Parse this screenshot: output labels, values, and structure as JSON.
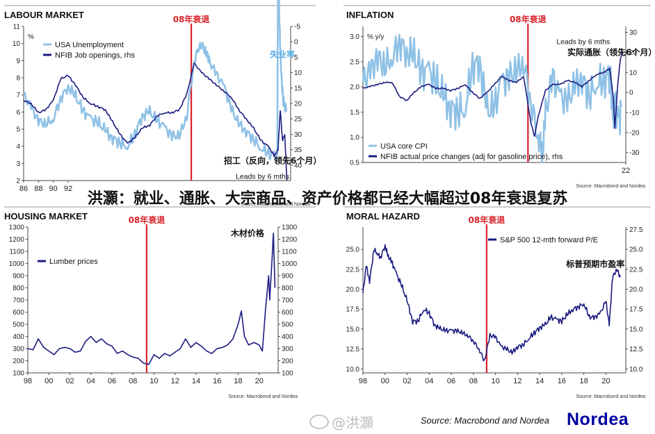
{
  "overlay_title": "洪灝：就业、通胀、大宗商品、资产价格都已经大幅超过08年衰退复苏",
  "footer": {
    "source": "Source: Macrobond and Nordea",
    "logo": "Nordea",
    "watermark": "@洪灝"
  },
  "colors": {
    "dark_series": "#1a1a80",
    "light_series": "#8fc1e6",
    "recession_line": "#d8232a",
    "recession_label": "#d8232a",
    "light_annot": "#5aaee6"
  },
  "chart_data": [
    {
      "type": "line",
      "title": "LABOUR MARKET",
      "ylabel": "%",
      "recession_label": "08年衰退",
      "recession_x": 2008.6,
      "xlim": [
        1986,
        2022
      ],
      "x_ticks": [
        [
          1986,
          "86"
        ],
        [
          1988,
          "88"
        ],
        [
          1990,
          "90"
        ],
        [
          1992,
          "92"
        ]
      ],
      "ylim_left": [
        2,
        11
      ],
      "y_ticks_left": [
        2,
        3,
        4,
        5,
        6,
        7,
        8,
        9,
        10,
        11
      ],
      "ylim_right": [
        -5,
        45
      ],
      "right_inverted": true,
      "y_ticks_right": [
        -5,
        0,
        5,
        10,
        15,
        20,
        25,
        30,
        35,
        40
      ],
      "legend": "top-left",
      "annotations": [
        {
          "text": "失业率",
          "x": 2019.2,
          "y": 9.2,
          "axis": "left",
          "color": "light"
        },
        {
          "text": "招工（反向，领先6个月）",
          "x": 2013.0,
          "y": 3.0,
          "axis": "left",
          "color": "dark"
        },
        {
          "text": "Leads by 6 mths",
          "x": 2014.6,
          "y": 2.1,
          "axis": "left",
          "color": "dark"
        }
      ],
      "series": [
        {
          "name": "USA Unemployment",
          "axis": "left",
          "color": "light",
          "x": [
            1986,
            1987,
            1988,
            1989,
            1990,
            1991,
            1992,
            1993,
            1994,
            1995,
            1996,
            1997,
            1998,
            1999,
            2000,
            2001,
            2002,
            2003,
            2004,
            2005,
            2006,
            2007,
            2008,
            2009,
            2009.8,
            2010.5,
            2011,
            2012,
            2013,
            2014,
            2015,
            2016,
            2017,
            2018,
            2019,
            2020.2,
            2020.3,
            2020.5,
            2020.7,
            2021,
            2021.4
          ],
          "values": [
            7.0,
            6.3,
            5.5,
            5.3,
            5.6,
            6.8,
            7.5,
            6.9,
            6.1,
            5.6,
            5.4,
            4.9,
            4.5,
            4.2,
            4.0,
            4.7,
            5.8,
            6.0,
            5.5,
            5.1,
            4.6,
            4.6,
            5.8,
            9.0,
            10.0,
            9.6,
            9.0,
            8.2,
            7.5,
            6.2,
            5.3,
            4.9,
            4.4,
            3.9,
            3.6,
            3.5,
            14.7,
            11.1,
            8.4,
            6.7,
            6.0
          ]
        },
        {
          "name": "NFIB Job openings, rhs",
          "axis": "right",
          "color": "dark",
          "x": [
            1986,
            1987,
            1988,
            1989,
            1990,
            1991,
            1992,
            1993,
            1994,
            1995,
            1996,
            1997,
            1998,
            1999,
            2000,
            2001,
            2002,
            2003,
            2004,
            2005,
            2006,
            2007,
            2008,
            2009,
            2010,
            2011,
            2012,
            2013,
            2014,
            2015,
            2016,
            2017,
            2018,
            2019,
            2019.8,
            2020.3,
            2020.6,
            2020.9,
            2021.2,
            2021.5
          ],
          "values": [
            19,
            20,
            23,
            22,
            19,
            12,
            11,
            14,
            18,
            20,
            21,
            22,
            26,
            30,
            33,
            31,
            28,
            27,
            24,
            23,
            23,
            22,
            17,
            7,
            10,
            12,
            14,
            16,
            18,
            22,
            25,
            28,
            32,
            34,
            37,
            35,
            22,
            32,
            30,
            45
          ]
        }
      ]
    },
    {
      "type": "line",
      "title": "INFLATION",
      "ylabel": "% y/y",
      "recession_label": "08年衰退",
      "recession_x": 2008.6,
      "xlim": [
        1986,
        2022
      ],
      "x_ticks": [
        [
          2022,
          "22"
        ]
      ],
      "ylim_left": [
        0.5,
        3.2
      ],
      "y_ticks_left": [
        0.5,
        1.0,
        1.5,
        2.0,
        2.5,
        3.0
      ],
      "ylim_right": [
        -35,
        33
      ],
      "right_inverted": false,
      "y_ticks_right": [
        -30,
        -20,
        -10,
        0,
        10,
        20,
        30
      ],
      "legend": "bottom-left",
      "annotations": [
        {
          "text": "Leads by 6 mths",
          "x": 2012.5,
          "y": 2.85,
          "axis": "left",
          "color": "dark"
        },
        {
          "text": "实际通胀（领先6个月）",
          "x": 2014.0,
          "y": 2.63,
          "axis": "left",
          "color": "dark"
        }
      ],
      "series": [
        {
          "name": "USA core CPI",
          "axis": "left",
          "color": "light",
          "x": [
            1986,
            1987,
            1988,
            1989,
            1990,
            1991,
            1992,
            1993,
            1994,
            1995,
            1996,
            1997,
            1998,
            1999,
            2000,
            2001,
            2002,
            2003,
            2004,
            2005,
            2006,
            2007,
            2008,
            2009,
            2010,
            2010.6,
            2011,
            2012,
            2013,
            2014,
            2015,
            2016,
            2017,
            2018,
            2019,
            2019.9,
            2020.3,
            2020.6,
            2021,
            2021.4
          ],
          "values": [
            2.1,
            2.3,
            2.6,
            2.4,
            2.6,
            2.9,
            2.7,
            2.6,
            2.3,
            2.3,
            2.1,
            1.8,
            1.6,
            1.5,
            1.6,
            2.4,
            2.5,
            1.5,
            1.6,
            2.1,
            2.2,
            2.3,
            2.5,
            1.7,
            1.0,
            0.7,
            1.5,
            2.2,
            1.8,
            1.7,
            2.0,
            2.2,
            1.8,
            2.1,
            2.1,
            2.3,
            1.2,
            1.6,
            1.3,
            1.6
          ]
        },
        {
          "name": "NFIB actual price changes (adj for gasoline price), rhs",
          "axis": "right",
          "color": "dark",
          "x": [
            1986,
            1987,
            1988,
            1989,
            1990,
            1991,
            1992,
            1993,
            1994,
            1995,
            1996,
            1997,
            1998,
            1999,
            2000,
            2001,
            2002,
            2003,
            2004,
            2005,
            2006,
            2007,
            2008,
            2009,
            2009.5,
            2010,
            2011,
            2012,
            2013,
            2014,
            2015,
            2016,
            2017,
            2018,
            2019,
            2019.8,
            2020.3,
            2020.5,
            2020.9,
            2021.2,
            2021.5
          ],
          "values": [
            2,
            3,
            4,
            5,
            5,
            -2,
            -4,
            0,
            3,
            4,
            2,
            2,
            1,
            2,
            4,
            0,
            -3,
            0,
            4,
            8,
            6,
            5,
            8,
            -15,
            -22,
            -12,
            1,
            4,
            4,
            6,
            5,
            3,
            6,
            9,
            10,
            12,
            -3,
            -18,
            4,
            15,
            21
          ]
        }
      ]
    },
    {
      "type": "line",
      "title": "HOUSING MARKET",
      "recession_label": "08年衰退",
      "recession_x": 2009.3,
      "xlim": [
        1998,
        2021.8
      ],
      "x_ticks": [
        [
          1998,
          "98"
        ],
        [
          2000,
          "00"
        ],
        [
          2002,
          "02"
        ],
        [
          2004,
          "04"
        ],
        [
          2006,
          "06"
        ],
        [
          2008,
          "08"
        ],
        [
          2010,
          "10"
        ],
        [
          2012,
          "12"
        ],
        [
          2014,
          "14"
        ],
        [
          2016,
          "16"
        ],
        [
          2018,
          "18"
        ],
        [
          2020,
          "20"
        ]
      ],
      "ylim_left": [
        100,
        1300
      ],
      "y_ticks_left": [
        100,
        200,
        300,
        400,
        500,
        600,
        700,
        800,
        900,
        1000,
        1100,
        1200,
        1300
      ],
      "ylim_right": [
        100,
        1300
      ],
      "y_ticks_right": [
        100,
        200,
        300,
        400,
        500,
        600,
        700,
        800,
        900,
        1000,
        1100,
        1200,
        1300
      ],
      "legend": "top-left",
      "annotations": [
        {
          "text": "木材价格",
          "x": 2017.3,
          "y": 1225,
          "axis": "left",
          "color": "dark"
        }
      ],
      "series": [
        {
          "name": "Lumber prices",
          "axis": "left",
          "color": "dark",
          "x": [
            1998,
            1998.5,
            1999,
            1999.5,
            2000,
            2000.5,
            2001,
            2001.5,
            2002,
            2002.5,
            2003,
            2003.5,
            2004,
            2004.5,
            2005,
            2005.5,
            2006,
            2006.5,
            2007,
            2007.5,
            2008,
            2008.5,
            2009,
            2009.5,
            2010,
            2010.5,
            2011,
            2011.5,
            2012,
            2012.5,
            2013,
            2013.5,
            2014,
            2014.5,
            2015,
            2015.5,
            2016,
            2016.5,
            2017,
            2017.5,
            2018,
            2018.3,
            2018.6,
            2019,
            2019.5,
            2020,
            2020.3,
            2020.6,
            2020.9,
            2021,
            2021.2,
            2021.35,
            2021.5
          ],
          "values": [
            300,
            290,
            380,
            310,
            280,
            250,
            300,
            310,
            300,
            270,
            280,
            360,
            400,
            350,
            380,
            340,
            320,
            260,
            280,
            250,
            230,
            220,
            180,
            170,
            250,
            220,
            260,
            240,
            270,
            300,
            380,
            310,
            350,
            320,
            280,
            260,
            300,
            310,
            330,
            380,
            500,
            610,
            400,
            330,
            350,
            330,
            280,
            620,
            900,
            700,
            1000,
            1250,
            800
          ]
        }
      ]
    },
    {
      "type": "line",
      "title": "MORAL HAZARD",
      "recession_label": "08年衰退",
      "recession_x": 2009.2,
      "xlim": [
        1998,
        2021.8
      ],
      "x_ticks": [
        [
          1998,
          "98"
        ],
        [
          2000,
          "00"
        ],
        [
          2002,
          "02"
        ],
        [
          2004,
          "04"
        ],
        [
          2006,
          "06"
        ],
        [
          2008,
          "08"
        ],
        [
          2010,
          "10"
        ],
        [
          2012,
          "12"
        ],
        [
          2014,
          "14"
        ],
        [
          2016,
          "16"
        ],
        [
          2018,
          "18"
        ],
        [
          2020,
          "20"
        ]
      ],
      "ylim_left": [
        9.5,
        27.8
      ],
      "y_ticks_left": [
        10.0,
        12.5,
        15.0,
        17.5,
        20.0,
        22.5,
        25.0
      ],
      "ylim_right": [
        9.5,
        27.8
      ],
      "y_ticks_right": [
        10.0,
        12.5,
        15.0,
        17.5,
        20.0,
        22.5,
        25.0,
        27.5
      ],
      "legend": "top-right",
      "annotations": [
        {
          "text": "标普预期市盈率",
          "x": 2016.4,
          "y": 22.8,
          "axis": "left",
          "color": "dark"
        }
      ],
      "series": [
        {
          "name": "S&P 500 12-mth forward P/E",
          "axis": "left",
          "color": "dark",
          "x": [
            1998,
            1998.3,
            1998.6,
            1999,
            1999.3,
            1999.6,
            2000,
            2000.3,
            2000.6,
            2001,
            2001.5,
            2002,
            2002.5,
            2003,
            2003.5,
            2004,
            2004.5,
            2005,
            2005.5,
            2006,
            2006.5,
            2007,
            2007.5,
            2008,
            2008.5,
            2009,
            2009.5,
            2010,
            2010.5,
            2011,
            2011.5,
            2012,
            2012.5,
            2013,
            2013.5,
            2014,
            2014.5,
            2015,
            2015.5,
            2016,
            2016.5,
            2017,
            2017.5,
            2018,
            2018.5,
            2019,
            2019.5,
            2020,
            2020.3,
            2020.6,
            2021,
            2021.3
          ],
          "values": [
            19.5,
            23.0,
            21.0,
            25.0,
            24.5,
            24.0,
            25.5,
            24.0,
            23.5,
            22.0,
            20.5,
            18.5,
            16.0,
            16.0,
            17.5,
            17.0,
            15.5,
            15.0,
            14.8,
            14.8,
            14.8,
            14.5,
            14.2,
            13.5,
            12.5,
            11.0,
            14.2,
            14.0,
            12.8,
            12.5,
            12.0,
            12.8,
            13.0,
            13.8,
            14.5,
            15.2,
            15.5,
            16.5,
            16.2,
            16.0,
            16.8,
            17.5,
            17.8,
            18.2,
            16.5,
            16.5,
            17.0,
            18.5,
            15.5,
            21.5,
            22.5,
            21.5
          ]
        }
      ]
    }
  ]
}
